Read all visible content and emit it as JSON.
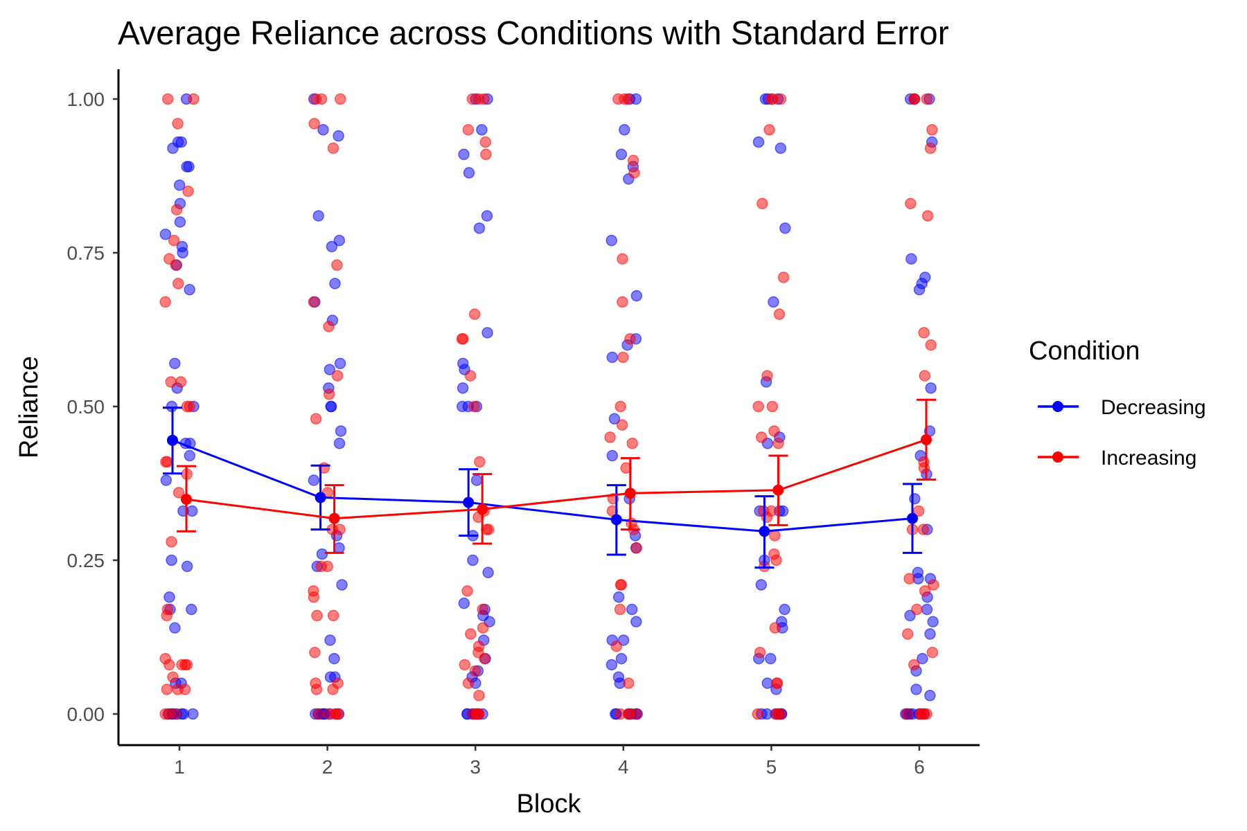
{
  "chart_data": {
    "type": "scatter",
    "title": "Average Reliance across Conditions with Standard Error",
    "xlabel": "Block",
    "ylabel": "Reliance",
    "categories": [
      "1",
      "2",
      "3",
      "4",
      "5",
      "6"
    ],
    "y_ticks": [
      "0.00",
      "0.25",
      "0.50",
      "0.75",
      "1.00"
    ],
    "ylim": [
      -0.05,
      1.05
    ],
    "grid": false,
    "legend": {
      "title": "Condition",
      "position": "right"
    },
    "series": [
      {
        "name": "Decreasing",
        "color": "#0000ff",
        "means": [
          0.445,
          0.352,
          0.344,
          0.316,
          0.297,
          0.318
        ],
        "se_lower": [
          0.391,
          0.3,
          0.29,
          0.259,
          0.238,
          0.262
        ],
        "se_upper": [
          0.498,
          0.404,
          0.398,
          0.372,
          0.354,
          0.374
        ],
        "points": [
          [
            1.0,
            0.93,
            0.93,
            0.92,
            0.89,
            0.89,
            0.86,
            0.83,
            0.8,
            0.78,
            0.76,
            0.75,
            0.73,
            0.69,
            0.57,
            0.53,
            0.5,
            0.5,
            0.44,
            0.44,
            0.42,
            0.38,
            0.33,
            0.33,
            0.25,
            0.24,
            0.19,
            0.17,
            0.17,
            0.14,
            0.05,
            0.05,
            0,
            0,
            0,
            0,
            0,
            0,
            0
          ],
          [
            1.0,
            0.95,
            0.94,
            0.81,
            0.77,
            0.76,
            0.7,
            0.67,
            0.64,
            0.57,
            0.56,
            0.53,
            0.5,
            0.5,
            0.46,
            0.44,
            0.38,
            0.29,
            0.27,
            0.26,
            0.24,
            0.21,
            0.12,
            0.09,
            0.06,
            0.06,
            0,
            0,
            0,
            0,
            0,
            0,
            0
          ],
          [
            1.0,
            1.0,
            0.95,
            0.91,
            0.88,
            0.81,
            0.79,
            0.62,
            0.57,
            0.56,
            0.53,
            0.5,
            0.5,
            0.5,
            0.38,
            0.29,
            0.25,
            0.23,
            0.18,
            0.17,
            0.16,
            0.15,
            0.12,
            0.09,
            0.07,
            0.06,
            0.05,
            0,
            0,
            0,
            0,
            0,
            0
          ],
          [
            1.0,
            1.0,
            0.95,
            0.91,
            0.89,
            0.87,
            0.77,
            0.68,
            0.61,
            0.6,
            0.58,
            0.48,
            0.42,
            0.35,
            0.29,
            0.27,
            0.19,
            0.17,
            0.15,
            0.12,
            0.12,
            0.09,
            0.08,
            0.06,
            0.05,
            0,
            0,
            0,
            0,
            0,
            0
          ],
          [
            1.0,
            1.0,
            1.0,
            0.93,
            0.92,
            0.79,
            0.67,
            0.54,
            0.45,
            0.44,
            0.33,
            0.33,
            0.33,
            0.25,
            0.21,
            0.17,
            0.15,
            0.14,
            0.09,
            0.09,
            0.05,
            0.04,
            0,
            0,
            0,
            0,
            0,
            0
          ],
          [
            1.0,
            1.0,
            1.0,
            0.93,
            0.74,
            0.71,
            0.7,
            0.69,
            0.53,
            0.46,
            0.42,
            0.39,
            0.35,
            0.3,
            0.23,
            0.22,
            0.22,
            0.19,
            0.17,
            0.16,
            0.15,
            0.13,
            0.09,
            0.07,
            0.04,
            0.03,
            0,
            0,
            0,
            0,
            0,
            0
          ]
        ]
      },
      {
        "name": "Increasing",
        "color": "#ff0000",
        "means": [
          0.349,
          0.318,
          0.333,
          0.359,
          0.364,
          0.446
        ],
        "se_lower": [
          0.297,
          0.262,
          0.277,
          0.3,
          0.307,
          0.381
        ],
        "se_upper": [
          0.403,
          0.372,
          0.39,
          0.416,
          0.42,
          0.511
        ],
        "points": [
          [
            1.0,
            1.0,
            0.96,
            0.85,
            0.82,
            0.77,
            0.74,
            0.73,
            0.7,
            0.67,
            0.54,
            0.54,
            0.5,
            0.5,
            0.41,
            0.41,
            0.39,
            0.36,
            0.28,
            0.17,
            0.16,
            0.09,
            0.08,
            0.08,
            0.08,
            0.08,
            0.06,
            0.04,
            0.04,
            0.04,
            0,
            0,
            0
          ],
          [
            1.0,
            1.0,
            1.0,
            0.96,
            0.92,
            0.73,
            0.67,
            0.63,
            0.55,
            0.52,
            0.48,
            0.4,
            0.36,
            0.3,
            0.3,
            0.24,
            0.24,
            0.2,
            0.19,
            0.16,
            0.16,
            0.1,
            0.05,
            0.05,
            0.04,
            0.04,
            0,
            0,
            0,
            0,
            0
          ],
          [
            1.0,
            1.0,
            1.0,
            0.95,
            0.93,
            0.91,
            0.65,
            0.61,
            0.61,
            0.55,
            0.5,
            0.41,
            0.33,
            0.32,
            0.3,
            0.3,
            0.2,
            0.17,
            0.14,
            0.13,
            0.11,
            0.1,
            0.09,
            0.08,
            0.07,
            0.05,
            0.03,
            0,
            0,
            0,
            0
          ],
          [
            1.0,
            1.0,
            1.0,
            0.9,
            0.88,
            0.74,
            0.67,
            0.61,
            0.58,
            0.5,
            0.47,
            0.45,
            0.44,
            0.4,
            0.35,
            0.33,
            0.31,
            0.3,
            0.27,
            0.21,
            0.21,
            0.17,
            0.11,
            0.05,
            0,
            0,
            0,
            0
          ],
          [
            1.0,
            1.0,
            1.0,
            0.95,
            0.83,
            0.71,
            0.65,
            0.55,
            0.5,
            0.5,
            0.46,
            0.45,
            0.44,
            0.33,
            0.33,
            0.32,
            0.29,
            0.26,
            0.25,
            0.24,
            0.14,
            0.1,
            0.05,
            0.05,
            0,
            0,
            0,
            0
          ],
          [
            1.0,
            1.0,
            1.0,
            0.95,
            0.92,
            0.83,
            0.81,
            0.62,
            0.6,
            0.55,
            0.41,
            0.4,
            0.33,
            0.3,
            0.3,
            0.22,
            0.21,
            0.2,
            0.17,
            0.13,
            0.1,
            0.08,
            0,
            0,
            0,
            0,
            0
          ]
        ]
      }
    ]
  }
}
